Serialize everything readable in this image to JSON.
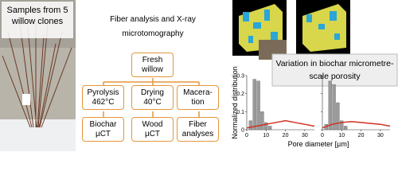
{
  "photo": {
    "caption": "Samples from 5 willow clones"
  },
  "title": "Fiber analysis and X-ray microtomography",
  "flowchart": {
    "nodes": [
      {
        "label": "Fresh\nwillow"
      },
      {
        "label": "Pyrolysis\n462°C"
      },
      {
        "label": "Drying\n40°C"
      },
      {
        "label": "Macera-\ntion"
      },
      {
        "label": "Biochar\nµCT"
      },
      {
        "label": "Wood\nµCT"
      },
      {
        "label": "Fiber\nanalyses"
      }
    ]
  },
  "chart": {
    "banner": "Variation in biochar micrometre-scale porosity",
    "y_label": "Normalized distribution",
    "x_label": "Pore diameter [µm]",
    "ylim": [
      0,
      0.3
    ],
    "yticks": [
      0,
      0.1,
      0.2,
      0.3
    ],
    "xlim": [
      0,
      35
    ],
    "xticks": [
      0,
      10,
      20,
      30
    ],
    "bar_color": "#9a9a9a",
    "curve_color": "#d03020",
    "panels": [
      {
        "bars": {
          "x": [
            2,
            4,
            6,
            8,
            10,
            12
          ],
          "values": [
            0.05,
            0.28,
            0.27,
            0.1,
            0.04,
            0.02
          ]
        },
        "curve": {
          "x": [
            0,
            5,
            10,
            15,
            20,
            25,
            30,
            35
          ],
          "values": [
            0.01,
            0.02,
            0.03,
            0.04,
            0.05,
            0.04,
            0.03,
            0.02
          ]
        }
      },
      {
        "bars": {
          "x": [
            2,
            4,
            6,
            8,
            10,
            12
          ],
          "values": [
            0.03,
            0.27,
            0.25,
            0.15,
            0.05,
            0.02
          ]
        },
        "curve": {
          "x": [
            0,
            5,
            10,
            15,
            20,
            25,
            30,
            35
          ],
          "values": [
            0.01,
            0.03,
            0.04,
            0.045,
            0.04,
            0.035,
            0.03,
            0.02
          ]
        }
      }
    ]
  }
}
